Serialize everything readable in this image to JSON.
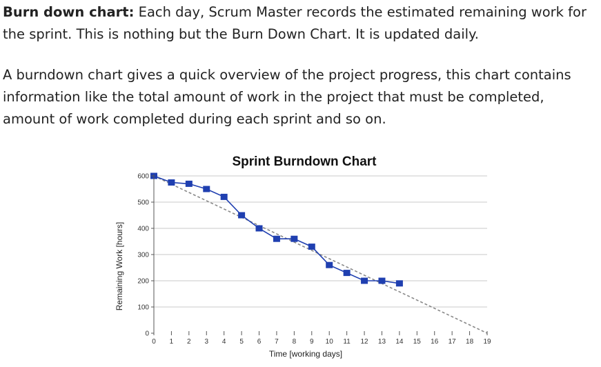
{
  "intro": {
    "lead": "Burn down chart:",
    "rest": " Each day, Scrum Master records the estimated remaining work for the sprint. This is nothing but the Burn Down Chart. It is updated daily."
  },
  "description": "A burndown chart gives a quick overview of the project progress, this chart contains information like the total amount of work in the project that must be completed, amount of work completed during each sprint and so on.",
  "chart_data": {
    "type": "line",
    "title": "Sprint Burndown Chart",
    "xlabel": "Time [working days]",
    "ylabel": "Remaining Work [hours]",
    "xlim": [
      0,
      19
    ],
    "ylim": [
      0,
      600
    ],
    "x_ticks": [
      0,
      1,
      2,
      3,
      4,
      5,
      6,
      7,
      8,
      9,
      10,
      11,
      12,
      13,
      14,
      15,
      16,
      17,
      18,
      19
    ],
    "y_ticks": [
      0,
      100,
      200,
      300,
      400,
      500,
      600
    ],
    "grid": true,
    "colors": {
      "actual": "#1f3fb0",
      "ideal": "#888888",
      "grid": "#c8c8c8"
    },
    "series": [
      {
        "style": "solid-square-markers",
        "x": [
          0,
          1,
          2,
          3,
          4,
          5,
          6,
          7,
          8,
          9,
          10,
          11,
          12,
          13,
          14
        ],
        "y": [
          600,
          575,
          570,
          550,
          520,
          450,
          400,
          360,
          360,
          330,
          260,
          230,
          200,
          200,
          190
        ]
      },
      {
        "style": "dashed",
        "x": [
          0,
          19
        ],
        "y": [
          600,
          0
        ]
      }
    ]
  }
}
